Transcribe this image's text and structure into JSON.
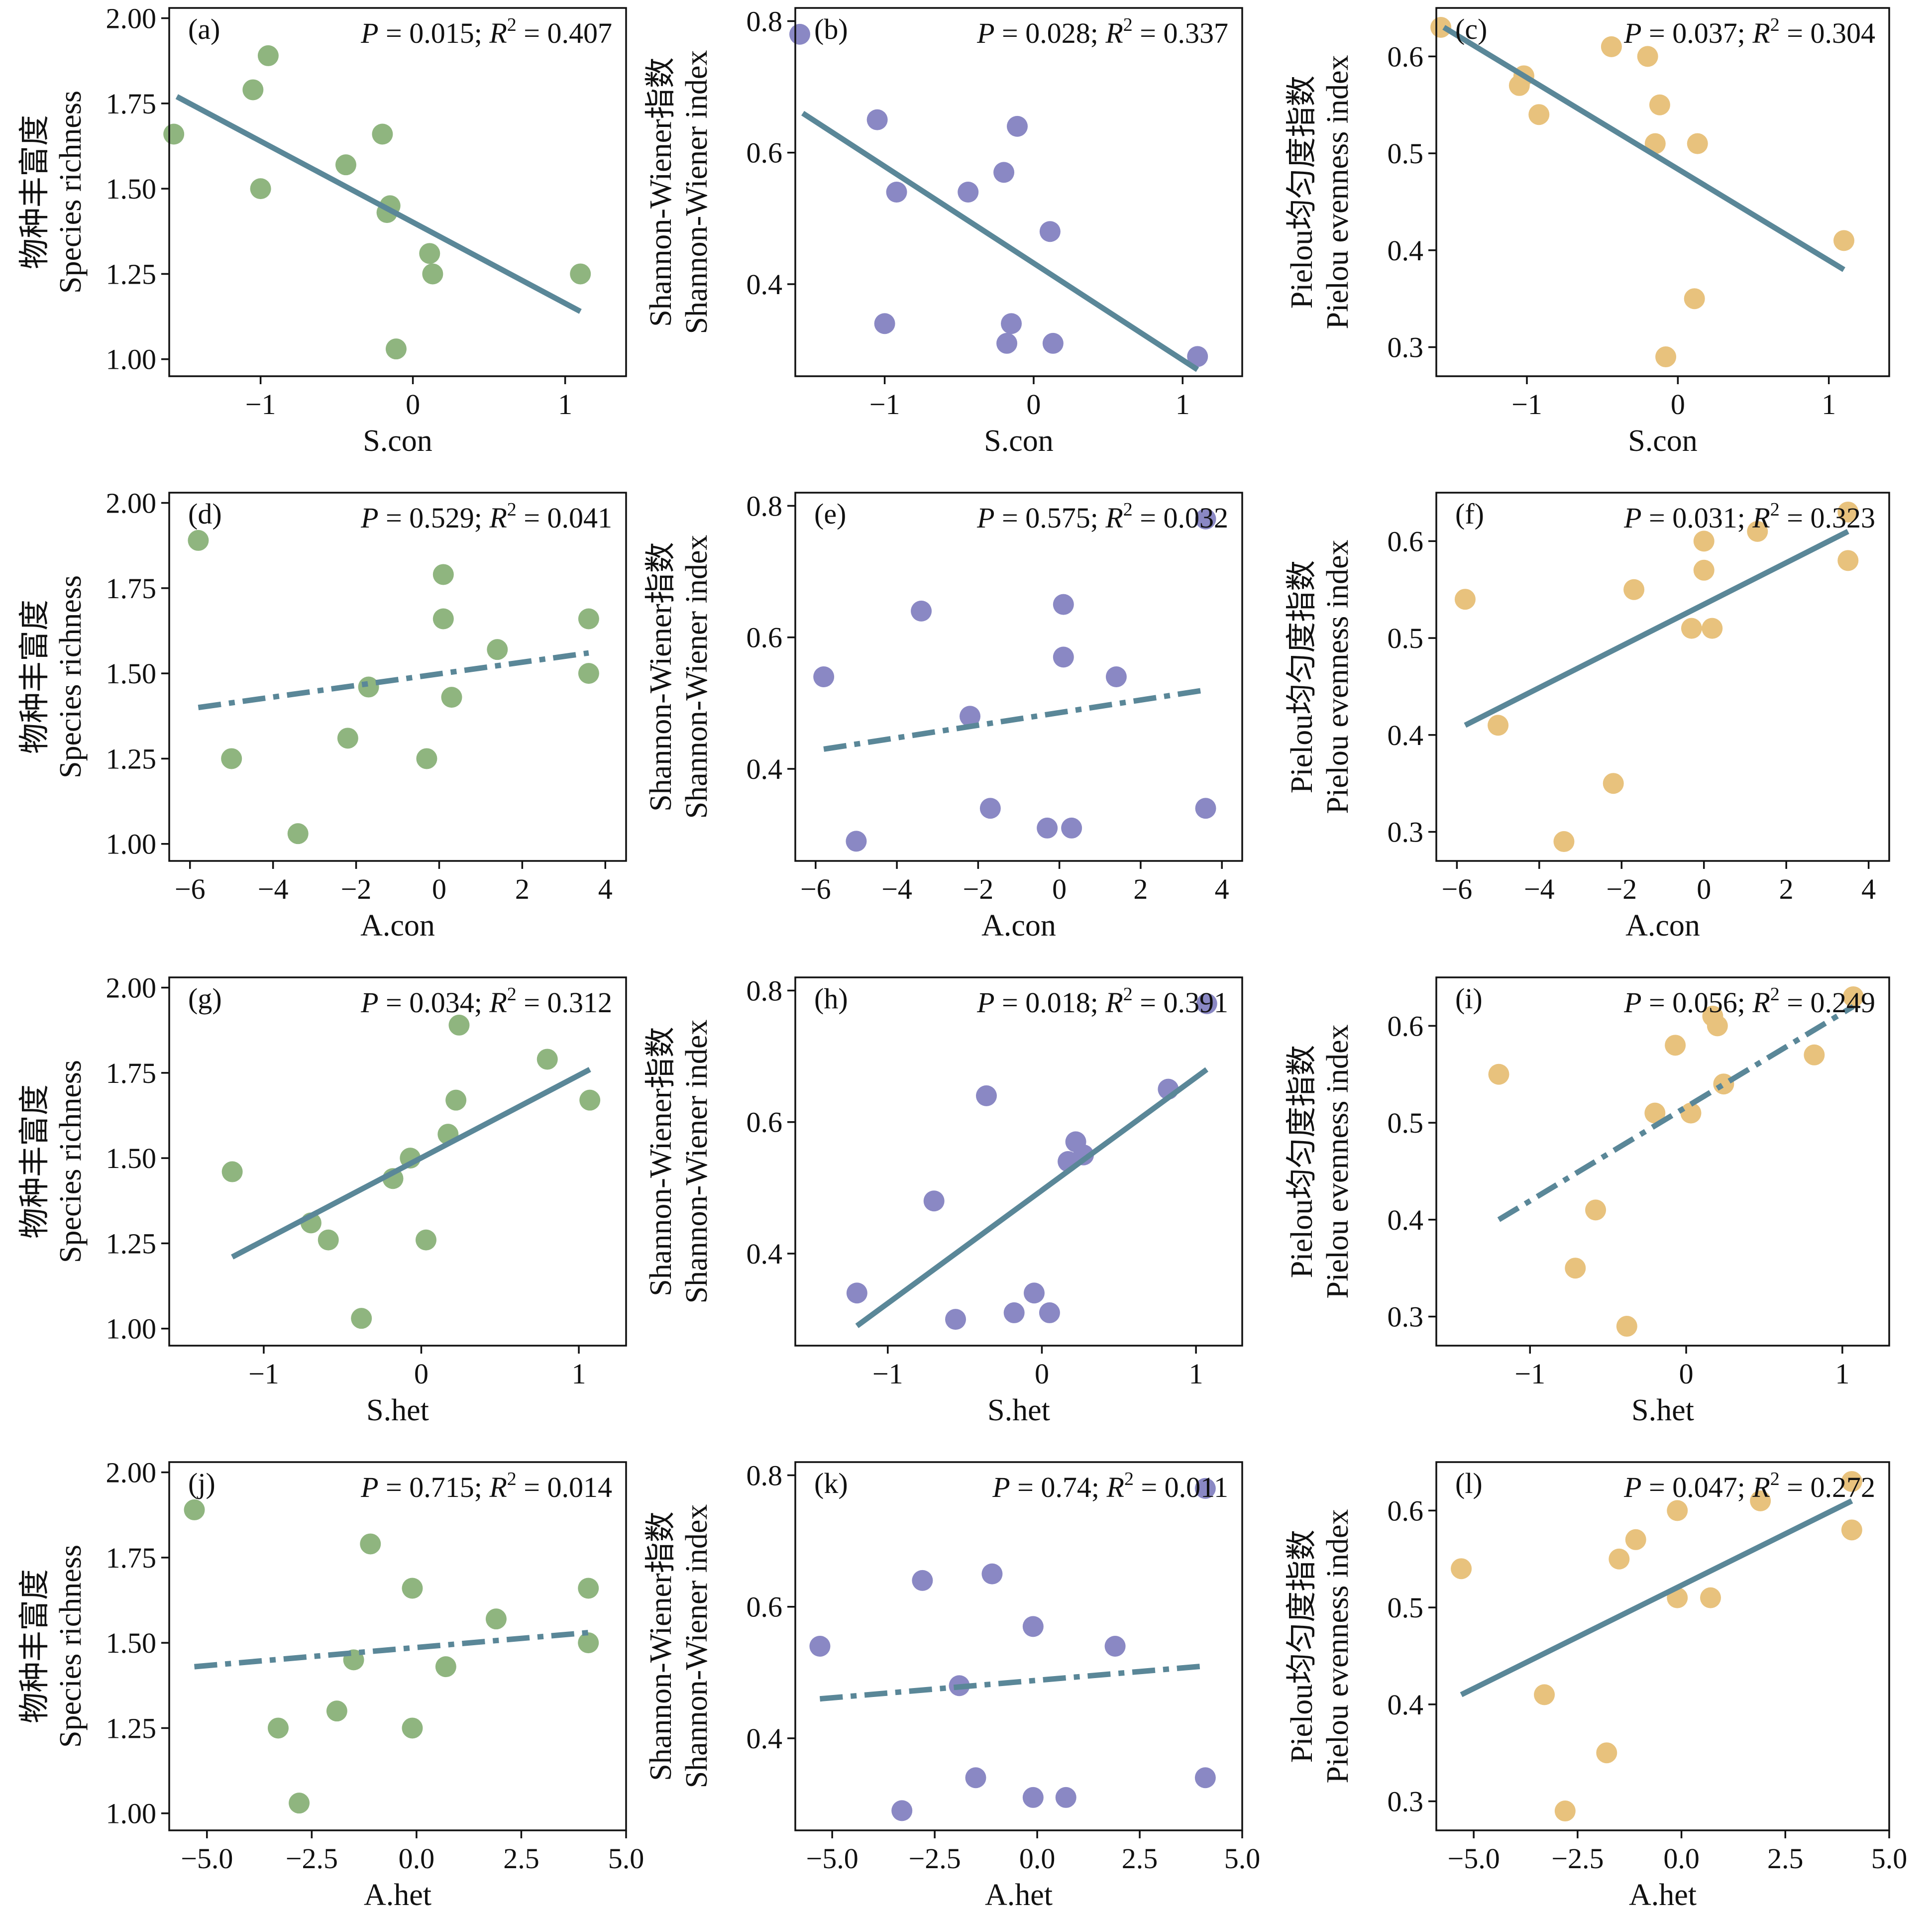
{
  "colors": {
    "richness": "#8fb57f",
    "shannon": "#8a88c4",
    "pielou": "#e8c27d",
    "fit_line": "#5a8798",
    "axis": "#111111"
  },
  "rows": [
    {
      "xlabel": "S.con",
      "xlim": [
        -1.6,
        1.4
      ],
      "xticks": [
        -1,
        0,
        1
      ],
      "xtick_labels": [
        "−1",
        "0",
        "1"
      ]
    },
    {
      "xlabel": "A.con",
      "xlim": [
        -6.5,
        4.5
      ],
      "xticks": [
        -6,
        -4,
        -2,
        0,
        2,
        4
      ],
      "xtick_labels": [
        "−6",
        "−4",
        "−2",
        "0",
        "2",
        "4"
      ]
    },
    {
      "xlabel": "S.het",
      "xlim": [
        -1.6,
        1.3
      ],
      "xticks": [
        -1,
        0,
        1
      ],
      "xtick_labels": [
        "−1",
        "0",
        "1"
      ]
    },
    {
      "xlabel": "A.het",
      "xlim": [
        -5.9,
        5.0
      ],
      "xticks": [
        -5,
        -2.5,
        0,
        2.5,
        5
      ],
      "xtick_labels": [
        "−5.0",
        "−2.5",
        "0.0",
        "2.5",
        "5.0"
      ]
    }
  ],
  "cols": [
    {
      "ylabel1": "物种丰富度",
      "ylabel2": "Species richness",
      "ylim": [
        0.95,
        2.03
      ],
      "yticks": [
        1.0,
        1.25,
        1.5,
        1.75,
        2.0
      ],
      "ytick_labels": [
        "1.00",
        "1.25",
        "1.50",
        "1.75",
        "2.00"
      ],
      "color_key": "richness"
    },
    {
      "ylabel1": "Shannon-Wiener指数",
      "ylabel2": "Shannon-Wiener index",
      "ylim": [
        0.26,
        0.82
      ],
      "yticks": [
        0.4,
        0.6,
        0.8
      ],
      "ytick_labels": [
        "0.4",
        "0.6",
        "0.8"
      ],
      "color_key": "shannon"
    },
    {
      "ylabel1": "Pielou均匀度指数",
      "ylabel2": "Pielou evenness index",
      "ylim": [
        0.27,
        0.65
      ],
      "yticks": [
        0.3,
        0.4,
        0.5,
        0.6
      ],
      "ytick_labels": [
        "0.3",
        "0.4",
        "0.5",
        "0.6"
      ],
      "color_key": "pielou"
    }
  ],
  "chart_data": [
    {
      "type": "scatter",
      "panel": "(a)",
      "stat_p": "P",
      "stat_p_val": " = 0.015; ",
      "stat_r": "R",
      "stat_r_sup": "2",
      "stat_r_val": " = 0.407",
      "line_style": "solid",
      "x": [
        -1.57,
        -1.05,
        -0.95,
        -1.0,
        -0.44,
        -0.2,
        -0.17,
        -0.15,
        -0.11,
        0.11,
        0.13,
        1.1
      ],
      "y": [
        1.66,
        1.79,
        1.89,
        1.5,
        1.57,
        1.66,
        1.43,
        1.45,
        1.03,
        1.31,
        1.25,
        1.25
      ],
      "fit": [
        [
          -1.55,
          1.77
        ],
        [
          1.1,
          1.14
        ]
      ]
    },
    {
      "type": "scatter",
      "panel": "(b)",
      "stat_p": "P",
      "stat_p_val": " = 0.028; ",
      "stat_r": "R",
      "stat_r_sup": "2",
      "stat_r_val": " = 0.337",
      "line_style": "solid",
      "x": [
        -1.57,
        -1.05,
        -1.0,
        -0.92,
        -0.44,
        -0.2,
        -0.18,
        -0.15,
        -0.11,
        0.11,
        0.13,
        1.1
      ],
      "y": [
        0.78,
        0.65,
        0.34,
        0.54,
        0.54,
        0.57,
        0.31,
        0.34,
        0.64,
        0.48,
        0.31,
        0.29
      ],
      "fit": [
        [
          -1.55,
          0.66
        ],
        [
          1.1,
          0.27
        ]
      ]
    },
    {
      "type": "scatter",
      "panel": "(c)",
      "stat_p": "P",
      "stat_p_val": " = 0.037; ",
      "stat_r": "R",
      "stat_r_sup": "2",
      "stat_r_val": " = 0.304",
      "line_style": "solid",
      "x": [
        -1.57,
        -1.05,
        -1.02,
        -0.92,
        -0.44,
        -0.2,
        -0.15,
        -0.12,
        -0.08,
        0.11,
        0.13,
        1.1
      ],
      "y": [
        0.63,
        0.57,
        0.58,
        0.54,
        0.61,
        0.6,
        0.51,
        0.55,
        0.29,
        0.35,
        0.51,
        0.41
      ],
      "fit": [
        [
          -1.55,
          0.63
        ],
        [
          1.1,
          0.38
        ]
      ]
    },
    {
      "type": "scatter",
      "panel": "(d)",
      "stat_p": "P",
      "stat_p_val": " = 0.529; ",
      "stat_r": "R",
      "stat_r_sup": "2",
      "stat_r_val": " = 0.041",
      "line_style": "dashed",
      "x": [
        -5.8,
        -5.0,
        -3.4,
        -2.2,
        -1.7,
        -0.3,
        0.1,
        0.1,
        0.3,
        1.4,
        3.6,
        3.6
      ],
      "y": [
        1.89,
        1.25,
        1.03,
        1.31,
        1.46,
        1.25,
        1.79,
        1.66,
        1.43,
        1.57,
        1.66,
        1.5
      ],
      "fit": [
        [
          -5.8,
          1.4
        ],
        [
          3.6,
          1.56
        ]
      ]
    },
    {
      "type": "scatter",
      "panel": "(e)",
      "stat_p": "P",
      "stat_p_val": " = 0.575; ",
      "stat_r": "R",
      "stat_r_sup": "2",
      "stat_r_val": " = 0.032",
      "line_style": "dashed",
      "x": [
        -5.8,
        -5.0,
        -3.4,
        -2.2,
        -1.7,
        -0.3,
        0.1,
        0.1,
        0.3,
        1.4,
        3.6,
        3.6
      ],
      "y": [
        0.54,
        0.29,
        0.64,
        0.48,
        0.34,
        0.31,
        0.65,
        0.57,
        0.31,
        0.54,
        0.78,
        0.34
      ],
      "fit": [
        [
          -5.8,
          0.43
        ],
        [
          3.6,
          0.52
        ]
      ]
    },
    {
      "type": "scatter",
      "panel": "(f)",
      "stat_p": "P",
      "stat_p_val": " = 0.031; ",
      "stat_r": "R",
      "stat_r_sup": "2",
      "stat_r_val": " = 0.323",
      "line_style": "solid",
      "x": [
        -5.8,
        -5.0,
        -3.4,
        -2.2,
        -1.7,
        -0.3,
        0.0,
        0.0,
        0.2,
        1.3,
        3.5,
        3.5
      ],
      "y": [
        0.54,
        0.41,
        0.29,
        0.35,
        0.55,
        0.51,
        0.6,
        0.57,
        0.51,
        0.61,
        0.63,
        0.58
      ],
      "fit": [
        [
          -5.8,
          0.41
        ],
        [
          3.5,
          0.61
        ]
      ]
    },
    {
      "type": "scatter",
      "panel": "(g)",
      "stat_p": "P",
      "stat_p_val": " = 0.034; ",
      "stat_r": "R",
      "stat_r_sup": "2",
      "stat_r_val": " = 0.312",
      "line_style": "solid",
      "x": [
        -1.2,
        -0.7,
        -0.59,
        -0.38,
        -0.18,
        -0.07,
        0.03,
        0.17,
        0.22,
        0.24,
        0.8,
        1.07
      ],
      "y": [
        1.46,
        1.31,
        1.26,
        1.03,
        1.44,
        1.5,
        1.26,
        1.57,
        1.67,
        1.89,
        1.79,
        1.67
      ],
      "fit": [
        [
          -1.2,
          1.21
        ],
        [
          1.07,
          1.76
        ]
      ]
    },
    {
      "type": "scatter",
      "panel": "(h)",
      "stat_p": "P",
      "stat_p_val": " = 0.018; ",
      "stat_r": "R",
      "stat_r_sup": "2",
      "stat_r_val": " = 0.391",
      "line_style": "solid",
      "x": [
        -1.2,
        -0.7,
        -0.56,
        -0.36,
        -0.18,
        -0.05,
        0.05,
        0.17,
        0.22,
        0.27,
        0.82,
        1.07
      ],
      "y": [
        0.34,
        0.48,
        0.3,
        0.64,
        0.31,
        0.34,
        0.31,
        0.54,
        0.57,
        0.55,
        0.65,
        0.78
      ],
      "fit": [
        [
          -1.2,
          0.29
        ],
        [
          1.07,
          0.68
        ]
      ]
    },
    {
      "type": "scatter",
      "panel": "(i)",
      "stat_p": "P",
      "stat_p_val": " = 0.056; ",
      "stat_r": "R",
      "stat_r_sup": "2",
      "stat_r_val": " = 0.249",
      "line_style": "dashed",
      "x": [
        -1.2,
        -0.71,
        -0.58,
        -0.38,
        -0.2,
        -0.07,
        0.03,
        0.17,
        0.2,
        0.24,
        0.82,
        1.07
      ],
      "y": [
        0.55,
        0.35,
        0.41,
        0.29,
        0.51,
        0.58,
        0.51,
        0.61,
        0.6,
        0.54,
        0.57,
        0.63
      ],
      "fit": [
        [
          -1.2,
          0.4
        ],
        [
          1.07,
          0.62
        ]
      ]
    },
    {
      "type": "scatter",
      "panel": "(j)",
      "stat_p": "P",
      "stat_p_val": " = 0.715; ",
      "stat_r": "R",
      "stat_r_sup": "2",
      "stat_r_val": " = 0.014",
      "line_style": "dashed",
      "x": [
        -5.3,
        -3.3,
        -2.8,
        -1.9,
        -1.5,
        -1.1,
        -0.1,
        -0.1,
        0.7,
        1.9,
        4.1,
        4.1
      ],
      "y": [
        1.89,
        1.25,
        1.03,
        1.3,
        1.45,
        1.79,
        1.66,
        1.25,
        1.43,
        1.57,
        1.66,
        1.5
      ],
      "fit": [
        [
          -5.3,
          1.43
        ],
        [
          4.1,
          1.53
        ]
      ]
    },
    {
      "type": "scatter",
      "panel": "(k)",
      "stat_p": "P",
      "stat_p_val": " = 0.74; ",
      "stat_r": "R",
      "stat_r_sup": "2",
      "stat_r_val": " = 0.011",
      "line_style": "dashed",
      "x": [
        -5.3,
        -3.3,
        -2.8,
        -1.9,
        -1.5,
        -1.1,
        -0.1,
        -0.1,
        0.7,
        1.9,
        4.1,
        4.1
      ],
      "y": [
        0.54,
        0.29,
        0.64,
        0.48,
        0.34,
        0.65,
        0.57,
        0.31,
        0.31,
        0.54,
        0.34,
        0.78
      ],
      "fit": [
        [
          -5.3,
          0.46
        ],
        [
          4.1,
          0.51
        ]
      ]
    },
    {
      "type": "scatter",
      "panel": "(l)",
      "stat_p": "P",
      "stat_p_val": " = 0.047; ",
      "stat_r": "R",
      "stat_r_sup": "2",
      "stat_r_val": " = 0.272",
      "line_style": "solid",
      "x": [
        -5.3,
        -3.3,
        -2.8,
        -1.8,
        -1.5,
        -1.1,
        -0.1,
        -0.1,
        0.7,
        1.9,
        4.1,
        4.1
      ],
      "y": [
        0.54,
        0.41,
        0.29,
        0.35,
        0.55,
        0.57,
        0.6,
        0.51,
        0.51,
        0.61,
        0.63,
        0.58
      ],
      "fit": [
        [
          -5.3,
          0.41
        ],
        [
          4.1,
          0.61
        ]
      ]
    }
  ]
}
